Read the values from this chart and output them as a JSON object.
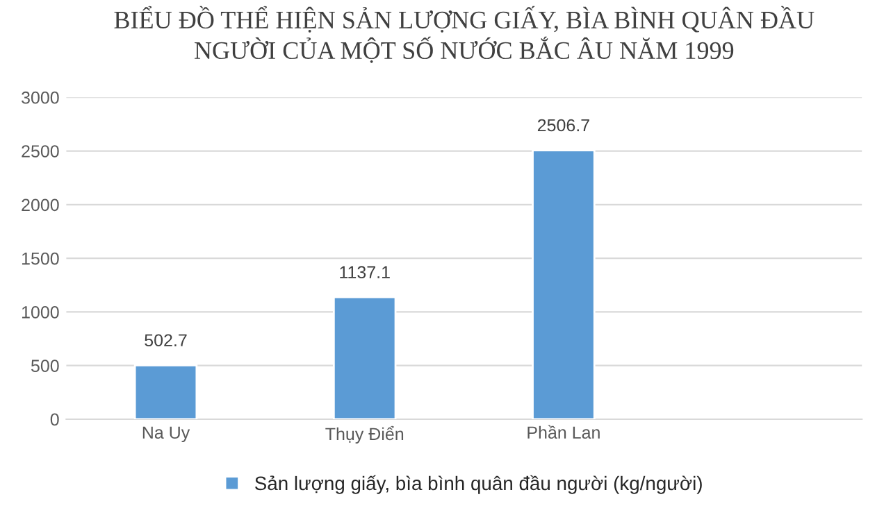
{
  "chart_data": {
    "type": "bar",
    "title": "BIỂU ĐỒ THỂ HIỆN SẢN LƯỢNG GIẤY, BÌA BÌNH QUÂN ĐẦU\nNGƯỜI CỦA MỘT SỐ NƯỚC BẮC ÂU NĂM 1999",
    "categories": [
      "Na Uy",
      "Thụy Điển",
      "Phần Lan",
      null
    ],
    "series": [
      {
        "name": "Sản lượng giấy, bìa bình quân đầu người (kg/người)",
        "color": "#5b9bd5",
        "values": [
          502.7,
          1137.1,
          2506.7,
          null
        ]
      }
    ],
    "ylim": [
      0,
      3000
    ],
    "yticks": [
      0,
      500,
      1000,
      1500,
      2000,
      2500,
      3000
    ],
    "grid": "y",
    "legend": "bottom",
    "data_labels": true
  }
}
